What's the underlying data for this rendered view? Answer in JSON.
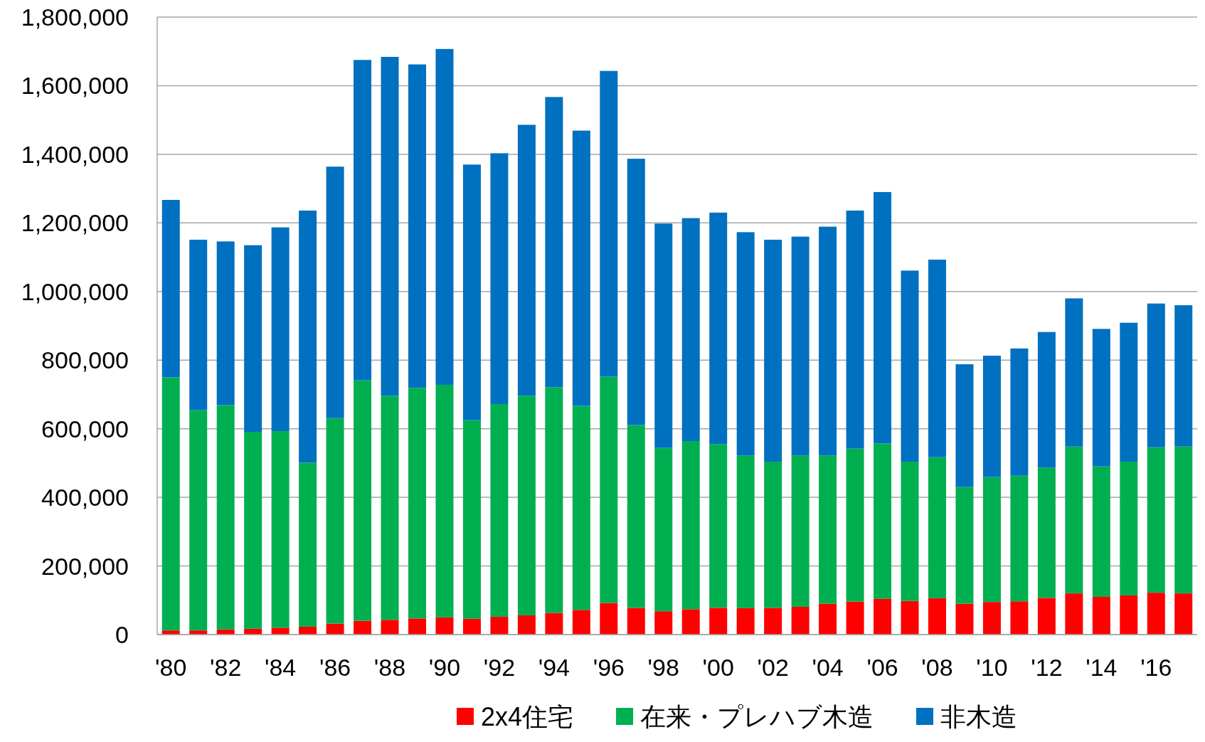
{
  "chart_data": {
    "type": "bar",
    "stacked": true,
    "grid": "y",
    "legend": "bottom",
    "categories": [
      "'80",
      null,
      "'82",
      null,
      "'84",
      null,
      "'86",
      null,
      "'88",
      null,
      "'90",
      null,
      "'92",
      null,
      "'94",
      null,
      "'96",
      null,
      "'98",
      null,
      "'00",
      null,
      "'02",
      null,
      "'04",
      null,
      "'06",
      null,
      "'08",
      null,
      "'10",
      null,
      "'12",
      null,
      "'14",
      null,
      "'16",
      null
    ],
    "ylim": [
      0,
      1800000
    ],
    "yticks": [
      0,
      {
        "value": 200000,
        "label": "200,000"
      },
      {
        "value": 400000,
        "label": "400,000"
      },
      {
        "value": 600000,
        "label": "600,000"
      },
      {
        "value": 800000,
        "label": "800,000"
      },
      {
        "value": 1000000,
        "label": "1,000,000"
      },
      {
        "value": 1200000,
        "label": "1,200,000"
      },
      {
        "value": 1400000,
        "label": "1,400,000"
      },
      {
        "value": 1600000,
        "label": "1,600,000"
      },
      {
        "value": 1800000,
        "label": "1,800,000"
      }
    ],
    "series": [
      {
        "name": "2x4住宅",
        "color": "#ff0000",
        "values": [
          12000,
          12000,
          15000,
          17000,
          20000,
          23000,
          32000,
          40000,
          43000,
          47000,
          50000,
          46000,
          52000,
          56000,
          63000,
          72000,
          92000,
          78000,
          68000,
          74000,
          78000,
          77000,
          78000,
          81000,
          90000,
          96000,
          104000,
          98000,
          106000,
          90000,
          95000,
          97000,
          107000,
          120000,
          110000,
          114000,
          122000,
          120000
        ]
      },
      {
        "name": "在来・プレハブ木造",
        "color": "#00b050",
        "values": [
          738000,
          642000,
          654000,
          574000,
          573000,
          478000,
          599000,
          701000,
          653000,
          672000,
          678000,
          579000,
          620000,
          640000,
          658000,
          595000,
          660000,
          533000,
          476000,
          490000,
          477000,
          445000,
          426000,
          441000,
          432000,
          446000,
          453000,
          406000,
          411000,
          340000,
          364000,
          366000,
          379000,
          428000,
          380000,
          390000,
          424000,
          428000
        ]
      },
      {
        "name": "非木造",
        "color": "#0070c0",
        "values": [
          517000,
          497000,
          477000,
          544000,
          594000,
          735000,
          733000,
          934000,
          988000,
          943000,
          979000,
          745000,
          731000,
          790000,
          846000,
          802000,
          891000,
          776000,
          654000,
          650000,
          675000,
          651000,
          647000,
          638000,
          667000,
          694000,
          733000,
          557000,
          576000,
          358000,
          354000,
          371000,
          396000,
          432000,
          401000,
          405000,
          419000,
          412000
        ]
      }
    ]
  }
}
